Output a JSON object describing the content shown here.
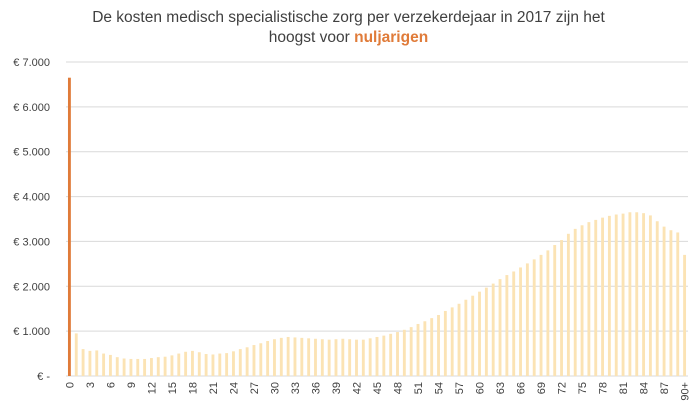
{
  "title": {
    "line1": "De kosten medisch specialistische zorg per verzekerdejaar in 2017 zijn het",
    "line2_prefix": "hoogst voor ",
    "line2_highlight": "nuljarigen"
  },
  "colors": {
    "highlight": "#E07B39",
    "bars": "#FBE3B4",
    "grid": "#D9D9D9",
    "text": "#404040"
  },
  "chart_data": {
    "type": "bar",
    "categories": [
      "0",
      "1",
      "2",
      "3",
      "4",
      "5",
      "6",
      "7",
      "8",
      "9",
      "10",
      "11",
      "12",
      "13",
      "14",
      "15",
      "16",
      "17",
      "18",
      "19",
      "20",
      "21",
      "22",
      "23",
      "24",
      "25",
      "26",
      "27",
      "28",
      "29",
      "30",
      "31",
      "32",
      "33",
      "34",
      "35",
      "36",
      "37",
      "38",
      "39",
      "40",
      "41",
      "42",
      "43",
      "44",
      "45",
      "46",
      "47",
      "48",
      "49",
      "50",
      "51",
      "52",
      "53",
      "54",
      "55",
      "56",
      "57",
      "58",
      "59",
      "60",
      "61",
      "62",
      "63",
      "64",
      "65",
      "66",
      "67",
      "68",
      "69",
      "70",
      "71",
      "72",
      "73",
      "74",
      "75",
      "76",
      "77",
      "78",
      "79",
      "80",
      "81",
      "82",
      "83",
      "84",
      "85",
      "86",
      "87",
      "88",
      "89",
      "90+"
    ],
    "tick_labels": [
      "0",
      "3",
      "6",
      "9",
      "12",
      "15",
      "18",
      "21",
      "24",
      "27",
      "30",
      "33",
      "36",
      "39",
      "42",
      "45",
      "48",
      "51",
      "54",
      "57",
      "60",
      "63",
      "66",
      "69",
      "72",
      "75",
      "78",
      "81",
      "84",
      "87",
      "90+"
    ],
    "values": [
      6650,
      950,
      600,
      560,
      570,
      500,
      470,
      420,
      390,
      380,
      380,
      380,
      400,
      420,
      430,
      460,
      500,
      540,
      560,
      530,
      490,
      480,
      500,
      510,
      550,
      600,
      640,
      690,
      730,
      780,
      820,
      850,
      870,
      860,
      850,
      840,
      830,
      820,
      810,
      820,
      830,
      820,
      810,
      810,
      840,
      870,
      900,
      940,
      980,
      1030,
      1090,
      1160,
      1220,
      1290,
      1360,
      1450,
      1530,
      1610,
      1700,
      1790,
      1880,
      1970,
      2060,
      2160,
      2250,
      2330,
      2420,
      2510,
      2600,
      2700,
      2800,
      2920,
      3030,
      3170,
      3280,
      3360,
      3430,
      3480,
      3530,
      3570,
      3600,
      3620,
      3650,
      3650,
      3630,
      3580,
      3450,
      3330,
      3250,
      3200,
      2700
    ],
    "ylim": [
      0,
      7000
    ],
    "ytick_values": [
      0,
      1000,
      2000,
      3000,
      4000,
      5000,
      6000,
      7000
    ],
    "ytick_labels": [
      "€ -",
      "€ 1.000",
      "€ 2.000",
      "€ 3.000",
      "€ 4.000",
      "€ 5.000",
      "€ 6.000",
      "€ 7.000"
    ],
    "highlighted_category": "0",
    "grid": true,
    "legend": "none"
  }
}
